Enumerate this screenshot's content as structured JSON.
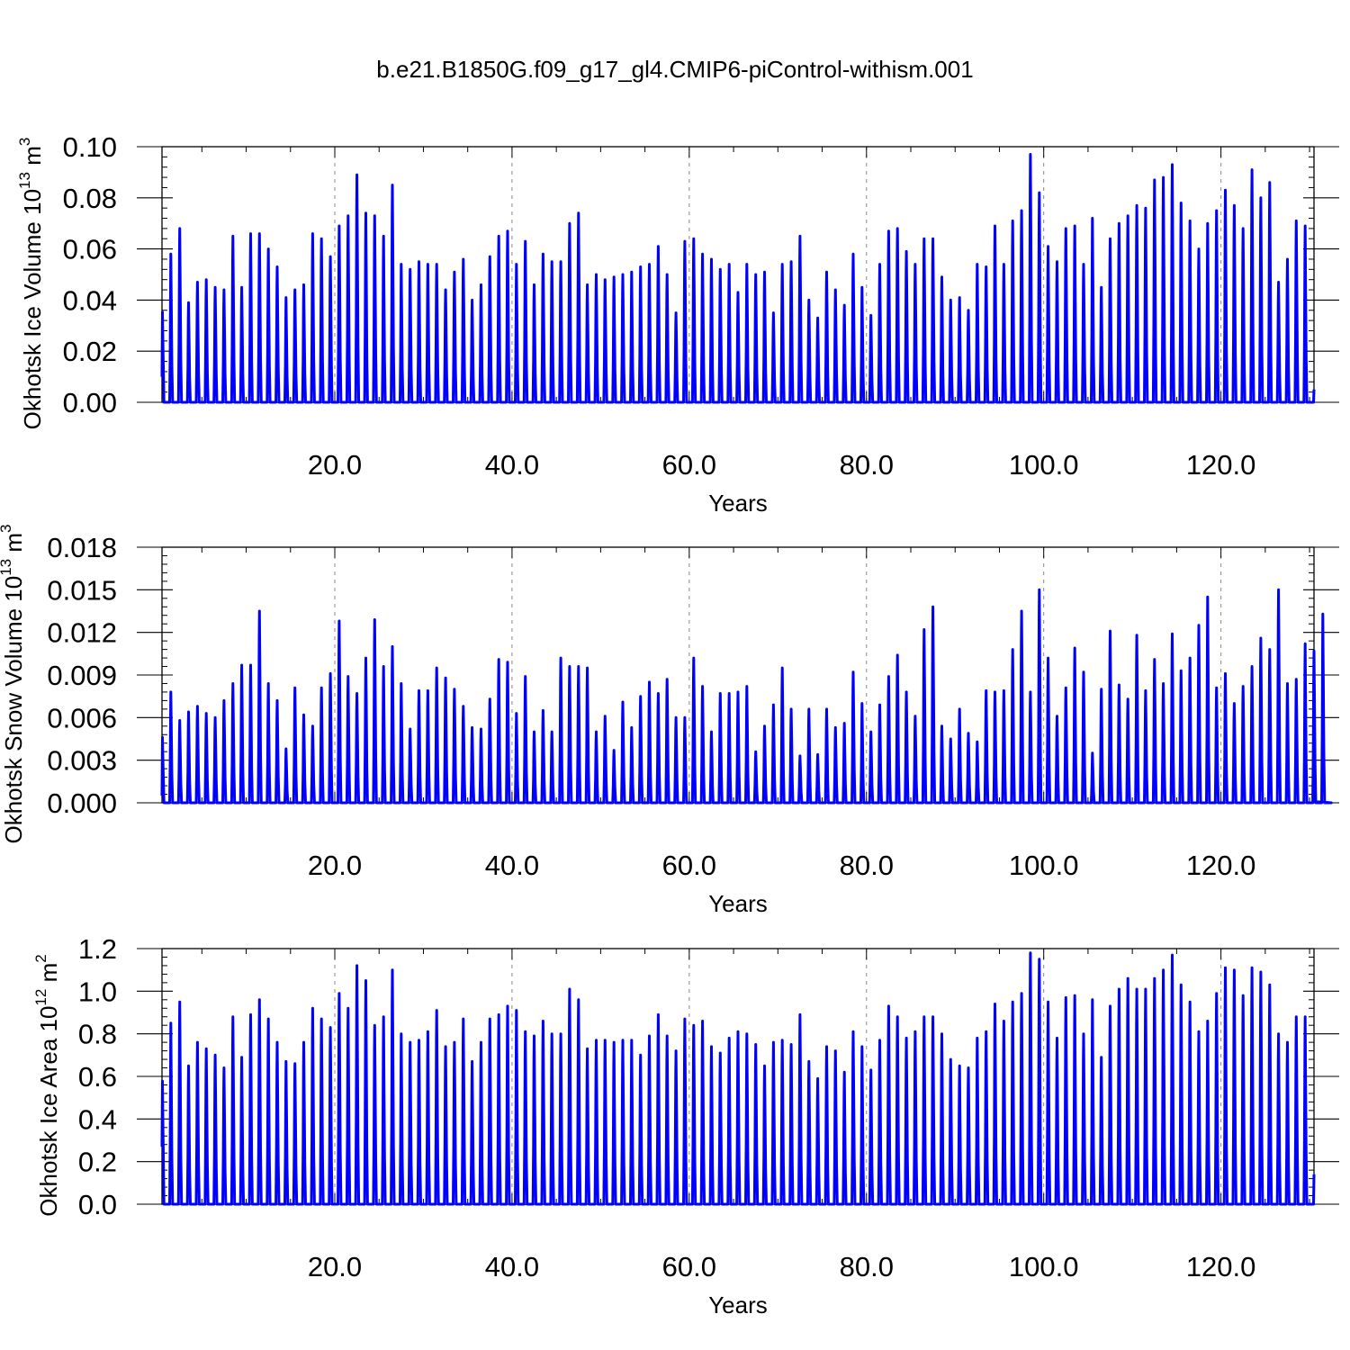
{
  "title": "b.e21.B1850G.f09_g17_gl4.CMIP6-piControl-withism.001",
  "colors": {
    "line": "#0000ff",
    "axis": "#000000",
    "grid": "#888888"
  },
  "chart_data": [
    {
      "type": "line",
      "ylabel": {
        "main": "Okhotsk Ice Volume 10",
        "exp": "13",
        "unit": " m",
        "unit_exp": "3"
      },
      "xlabel": "Years",
      "xlim": [
        0.5,
        130.5
      ],
      "ylim": [
        0,
        0.1
      ],
      "xticks": [
        20,
        40,
        60,
        80,
        100,
        120
      ],
      "xtick_labels": [
        "20.0",
        "40.0",
        "60.0",
        "80.0",
        "100.0",
        "120.0"
      ],
      "yticks": [
        0,
        0.02,
        0.04,
        0.06,
        0.08,
        0.1
      ],
      "ytick_labels": [
        "0.00",
        "0.02",
        "0.04",
        "0.06",
        "0.08",
        "0.10"
      ],
      "grid": "x-dashed at major ticks",
      "series": [
        {
          "start_year": 0.5,
          "annual_peaks": [
            0.036,
            0.058,
            0.068,
            0.039,
            0.047,
            0.048,
            0.045,
            0.044,
            0.065,
            0.045,
            0.066,
            0.066,
            0.06,
            0.053,
            0.041,
            0.044,
            0.046,
            0.066,
            0.064,
            0.057,
            0.069,
            0.073,
            0.089,
            0.074,
            0.073,
            0.065,
            0.085,
            0.054,
            0.052,
            0.055,
            0.054,
            0.054,
            0.044,
            0.051,
            0.056,
            0.04,
            0.046,
            0.057,
            0.065,
            0.067,
            0.054,
            0.063,
            0.046,
            0.058,
            0.055,
            0.055,
            0.07,
            0.074,
            0.046,
            0.05,
            0.048,
            0.049,
            0.05,
            0.051,
            0.053,
            0.054,
            0.061,
            0.05,
            0.035,
            0.063,
            0.064,
            0.058,
            0.056,
            0.052,
            0.054,
            0.043,
            0.054,
            0.05,
            0.051,
            0.035,
            0.054,
            0.055,
            0.065,
            0.04,
            0.033,
            0.051,
            0.044,
            0.038,
            0.058,
            0.045,
            0.034,
            0.054,
            0.067,
            0.068,
            0.059,
            0.054,
            0.064,
            0.064,
            0.049,
            0.04,
            0.041,
            0.036,
            0.054,
            0.053,
            0.069,
            0.054,
            0.071,
            0.075,
            0.097,
            0.082,
            0.061,
            0.055,
            0.068,
            0.069,
            0.054,
            0.072,
            0.045,
            0.064,
            0.07,
            0.073,
            0.077,
            0.076,
            0.087,
            0.088,
            0.093,
            0.078,
            0.071,
            0.06,
            0.07,
            0.075,
            0.083,
            0.077,
            0.068,
            0.091,
            0.08,
            0.086,
            0.047,
            0.056,
            0.071,
            0.069
          ],
          "start_value": 0.01,
          "end_value": 0.005
        }
      ]
    },
    {
      "type": "line",
      "ylabel": {
        "main": "Okhotsk Snow Volume 10",
        "exp": "13",
        "unit": " m",
        "unit_exp": "3"
      },
      "xlabel": "Years",
      "xlim": [
        0.5,
        130.5
      ],
      "ylim": [
        0,
        0.018
      ],
      "xticks": [
        20,
        40,
        60,
        80,
        100,
        120
      ],
      "xtick_labels": [
        "20.0",
        "40.0",
        "60.0",
        "80.0",
        "100.0",
        "120.0"
      ],
      "yticks": [
        0,
        0.003,
        0.006,
        0.009,
        0.012,
        0.015,
        0.018
      ],
      "ytick_labels": [
        "0.000",
        "0.003",
        "0.006",
        "0.009",
        "0.012",
        "0.015",
        "0.018"
      ],
      "grid": "x-dashed at major ticks",
      "series": [
        {
          "start_year": 0.5,
          "annual_peaks": [
            0.0047,
            0.0078,
            0.0058,
            0.0064,
            0.0068,
            0.0063,
            0.006,
            0.0072,
            0.0084,
            0.0097,
            0.0097,
            0.0135,
            0.0084,
            0.0072,
            0.0038,
            0.0081,
            0.0062,
            0.0054,
            0.0081,
            0.0091,
            0.0128,
            0.0089,
            0.0077,
            0.0102,
            0.0129,
            0.0096,
            0.011,
            0.0084,
            0.0052,
            0.0079,
            0.0079,
            0.0095,
            0.0088,
            0.008,
            0.0068,
            0.0053,
            0.0052,
            0.0073,
            0.0101,
            0.0099,
            0.0063,
            0.0089,
            0.005,
            0.0065,
            0.005,
            0.0102,
            0.0096,
            0.0096,
            0.0095,
            0.005,
            0.0061,
            0.0037,
            0.0071,
            0.0053,
            0.0075,
            0.0085,
            0.0077,
            0.0087,
            0.006,
            0.006,
            0.0102,
            0.0082,
            0.005,
            0.0077,
            0.0077,
            0.0078,
            0.0082,
            0.0036,
            0.0054,
            0.0069,
            0.0095,
            0.0066,
            0.0033,
            0.0066,
            0.0034,
            0.0066,
            0.0053,
            0.0056,
            0.0092,
            0.007,
            0.005,
            0.0069,
            0.0089,
            0.0104,
            0.0078,
            0.0061,
            0.0122,
            0.0138,
            0.0054,
            0.0045,
            0.0066,
            0.0049,
            0.0043,
            0.0079,
            0.0078,
            0.0079,
            0.0108,
            0.0135,
            0.0078,
            0.015,
            0.0102,
            0.0061,
            0.0081,
            0.0109,
            0.0092,
            0.0035,
            0.008,
            0.0121,
            0.0083,
            0.0073,
            0.0118,
            0.0079,
            0.0101,
            0.0084,
            0.0119,
            0.0093,
            0.0102,
            0.0125,
            0.0145,
            0.0081,
            0.0091,
            0.007,
            0.0082,
            0.0096,
            0.0116,
            0.0108,
            0.015,
            0.0084,
            0.0087,
            0.0112,
            0.0107,
            0.0133
          ],
          "start_value": 0.0005,
          "end_value": 0.0001
        }
      ]
    },
    {
      "type": "line",
      "ylabel": {
        "main": "Okhotsk Ice Area 10",
        "exp": "12",
        "unit": " m",
        "unit_exp": "2"
      },
      "xlabel": "Years",
      "xlim": [
        0.5,
        130.5
      ],
      "ylim": [
        0,
        1.2
      ],
      "xticks": [
        20,
        40,
        60,
        80,
        100,
        120
      ],
      "xtick_labels": [
        "20.0",
        "40.0",
        "60.0",
        "80.0",
        "100.0",
        "120.0"
      ],
      "yticks": [
        0,
        0.2,
        0.4,
        0.6,
        0.8,
        1.0,
        1.2
      ],
      "ytick_labels": [
        "0.0",
        "0.2",
        "0.4",
        "0.6",
        "0.8",
        "1.0",
        "1.2"
      ],
      "grid": "x-dashed at major ticks",
      "series": [
        {
          "start_year": 0.5,
          "annual_peaks": [
            0.59,
            0.85,
            0.95,
            0.65,
            0.76,
            0.73,
            0.7,
            0.64,
            0.88,
            0.69,
            0.89,
            0.96,
            0.87,
            0.76,
            0.67,
            0.66,
            0.76,
            0.92,
            0.87,
            0.83,
            0.99,
            0.92,
            1.12,
            1.05,
            0.84,
            0.88,
            1.1,
            0.8,
            0.76,
            0.77,
            0.81,
            0.91,
            0.74,
            0.76,
            0.87,
            0.67,
            0.76,
            0.87,
            0.89,
            0.93,
            0.91,
            0.81,
            0.79,
            0.86,
            0.8,
            0.8,
            1.01,
            0.96,
            0.73,
            0.77,
            0.77,
            0.76,
            0.77,
            0.77,
            0.7,
            0.79,
            0.89,
            0.79,
            0.72,
            0.87,
            0.84,
            0.86,
            0.74,
            0.71,
            0.78,
            0.81,
            0.8,
            0.75,
            0.65,
            0.76,
            0.77,
            0.75,
            0.89,
            0.67,
            0.59,
            0.74,
            0.72,
            0.62,
            0.81,
            0.74,
            0.63,
            0.77,
            0.93,
            0.88,
            0.78,
            0.81,
            0.88,
            0.88,
            0.8,
            0.68,
            0.65,
            0.64,
            0.78,
            0.81,
            0.94,
            0.86,
            0.95,
            0.99,
            1.18,
            1.15,
            0.95,
            0.78,
            0.97,
            0.98,
            0.8,
            0.96,
            0.69,
            0.93,
            1.01,
            1.06,
            1.01,
            1.01,
            1.06,
            1.1,
            1.17,
            1.03,
            0.95,
            0.81,
            0.86,
            0.99,
            1.11,
            1.1,
            0.98,
            1.11,
            1.09,
            1.03,
            0.8,
            0.76,
            0.88,
            0.88
          ],
          "start_value": 0.27,
          "end_value": 0.14
        }
      ]
    }
  ]
}
